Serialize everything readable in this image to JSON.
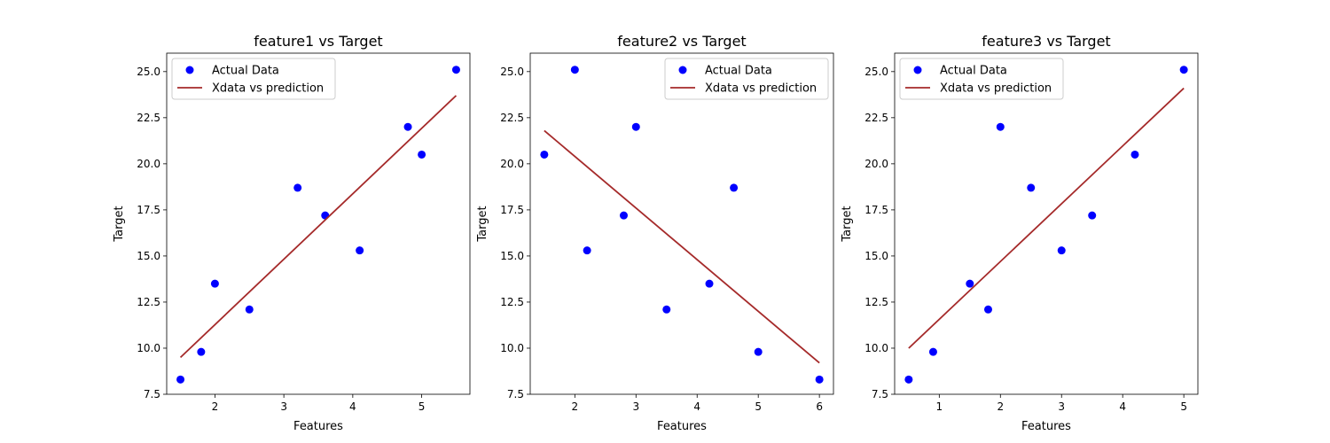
{
  "chart_data": [
    {
      "type": "scatter",
      "title": "feature1 vs Target",
      "xlabel": "Features",
      "ylabel": "Target",
      "xlim": [
        1.3,
        5.7
      ],
      "ylim": [
        7.5,
        26.0
      ],
      "xticks": [
        2,
        3,
        4,
        5
      ],
      "yticks": [
        7.5,
        10.0,
        12.5,
        15.0,
        17.5,
        20.0,
        22.5,
        25.0
      ],
      "legend_position": "top-left",
      "series": [
        {
          "name": "Actual Data",
          "kind": "scatter",
          "color": "#0000ff",
          "points": [
            [
              1.5,
              8.3
            ],
            [
              1.8,
              9.8
            ],
            [
              2.0,
              13.5
            ],
            [
              2.5,
              12.1
            ],
            [
              3.2,
              18.7
            ],
            [
              3.6,
              17.2
            ],
            [
              4.1,
              15.3
            ],
            [
              4.8,
              22.0
            ],
            [
              5.0,
              20.5
            ],
            [
              5.5,
              25.1
            ]
          ]
        },
        {
          "name": "Xdata vs prediction",
          "kind": "line",
          "color": "#a52a2a",
          "points": [
            [
              1.5,
              9.5
            ],
            [
              5.5,
              23.7
            ]
          ]
        }
      ]
    },
    {
      "type": "scatter",
      "title": "feature2 vs Target",
      "xlabel": "Features",
      "ylabel": "Target",
      "xlim": [
        1.27,
        6.23
      ],
      "ylim": [
        7.5,
        26.0
      ],
      "xticks": [
        2,
        3,
        4,
        5,
        6
      ],
      "yticks": [
        7.5,
        10.0,
        12.5,
        15.0,
        17.5,
        20.0,
        22.5,
        25.0
      ],
      "legend_position": "top-right",
      "series": [
        {
          "name": "Actual Data",
          "kind": "scatter",
          "color": "#0000ff",
          "points": [
            [
              1.5,
              20.5
            ],
            [
              2.0,
              25.1
            ],
            [
              2.2,
              15.3
            ],
            [
              2.8,
              17.2
            ],
            [
              3.0,
              22.0
            ],
            [
              3.5,
              12.1
            ],
            [
              4.2,
              13.5
            ],
            [
              4.6,
              18.7
            ],
            [
              5.0,
              9.8
            ],
            [
              6.0,
              8.3
            ]
          ]
        },
        {
          "name": "Xdata vs prediction",
          "kind": "line",
          "color": "#a52a2a",
          "points": [
            [
              1.5,
              21.8
            ],
            [
              6.0,
              9.2
            ]
          ]
        }
      ]
    },
    {
      "type": "scatter",
      "title": "feature3 vs Target",
      "xlabel": "Features",
      "ylabel": "Target",
      "xlim": [
        0.27,
        5.23
      ],
      "ylim": [
        7.5,
        26.0
      ],
      "xticks": [
        1,
        2,
        3,
        4,
        5
      ],
      "yticks": [
        7.5,
        10.0,
        12.5,
        15.0,
        17.5,
        20.0,
        22.5,
        25.0
      ],
      "legend_position": "top-left",
      "series": [
        {
          "name": "Actual Data",
          "kind": "scatter",
          "color": "#0000ff",
          "points": [
            [
              0.5,
              8.3
            ],
            [
              0.9,
              9.8
            ],
            [
              1.5,
              13.5
            ],
            [
              1.8,
              12.1
            ],
            [
              2.0,
              22.0
            ],
            [
              2.5,
              18.7
            ],
            [
              3.0,
              15.3
            ],
            [
              3.5,
              17.2
            ],
            [
              4.2,
              20.5
            ],
            [
              5.0,
              25.1
            ]
          ]
        },
        {
          "name": "Xdata vs prediction",
          "kind": "line",
          "color": "#a52a2a",
          "points": [
            [
              0.5,
              10.0
            ],
            [
              5.0,
              24.1
            ]
          ]
        }
      ]
    }
  ]
}
